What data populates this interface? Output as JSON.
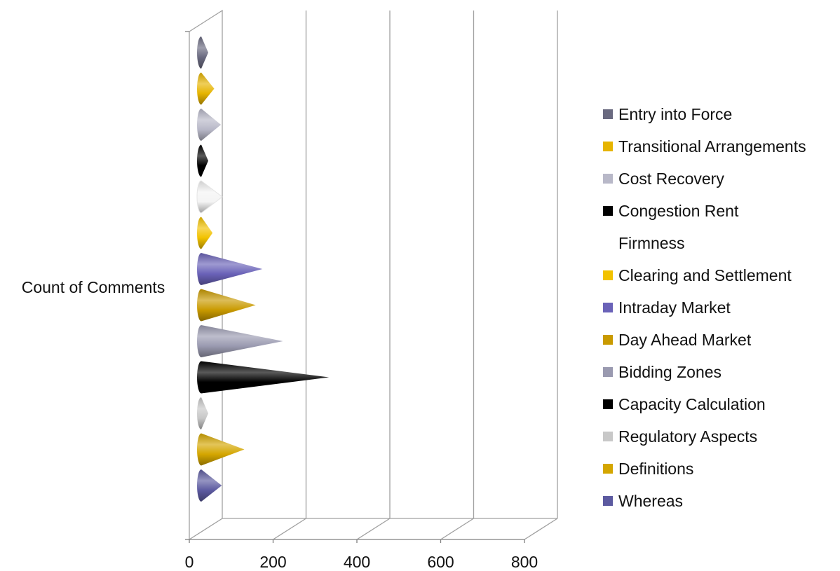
{
  "chart_data": {
    "type": "bar",
    "orientation": "horizontal",
    "style": "3d-cone",
    "ylabel": "Count of Comments",
    "xlim": [
      0,
      800
    ],
    "xticks": [
      "0",
      "200",
      "400",
      "600",
      "800"
    ],
    "grid": true,
    "legend_position": "right",
    "series": [
      {
        "name": "Whereas",
        "value": 49,
        "color": "#5c5aa0"
      },
      {
        "name": "Definitions",
        "value": 103,
        "color": "#d4a600"
      },
      {
        "name": "Regulatory Aspects",
        "value": 5,
        "color": "#c8c8c8"
      },
      {
        "name": "Capacity Calculation",
        "value": 305,
        "color": "#000000"
      },
      {
        "name": "Bidding Zones",
        "value": 195,
        "color": "#9a9ab0"
      },
      {
        "name": "Day Ahead Market",
        "value": 130,
        "color": "#c99a00"
      },
      {
        "name": "Intraday Market",
        "value": 146,
        "color": "#6a62b8"
      },
      {
        "name": "Clearing and Settlement",
        "value": 27,
        "color": "#f2c200"
      },
      {
        "name": "Firmness",
        "value": 50,
        "color": null
      },
      {
        "name": "Congestion Rent",
        "value": 8,
        "color": "#000000"
      },
      {
        "name": "Cost Recovery",
        "value": 47,
        "color": "#b8b8c8"
      },
      {
        "name": "Transitional Arrangements",
        "value": 31,
        "color": "#e6b400"
      },
      {
        "name": "Entry into Force",
        "value": 5,
        "color": "#6a6a80"
      }
    ]
  }
}
